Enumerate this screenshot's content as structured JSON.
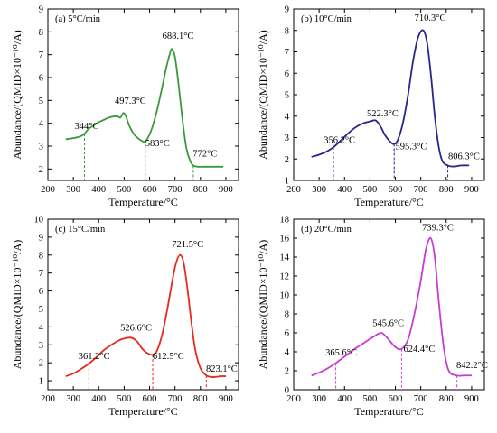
{
  "chart_data": [
    {
      "type": "line",
      "panel_label": "(a) 5°C/min",
      "color": "#3a9a3a",
      "xlabel": "Temperature/°C",
      "ylabel": "Abundance/(QMID×10⁻¹⁰/A)",
      "xlim": [
        200,
        950
      ],
      "ylim": [
        1.5,
        9
      ],
      "xticks": [
        "200",
        "300",
        "400",
        "500",
        "600",
        "700",
        "800",
        "900"
      ],
      "yticks": [
        "2",
        "3",
        "4",
        "5",
        "6",
        "7",
        "8",
        "9"
      ],
      "series": [
        {
          "x": [
            270,
            300,
            320,
            340,
            360,
            380,
            400,
            420,
            440,
            460,
            475,
            485,
            497,
            507,
            520,
            540,
            560,
            575,
            583,
            595,
            610,
            630,
            650,
            665,
            680,
            688,
            700,
            715,
            730,
            745,
            760,
            772,
            790,
            810,
            830,
            850,
            870,
            890
          ],
          "y": [
            3.3,
            3.35,
            3.4,
            3.5,
            3.75,
            3.9,
            4.05,
            4.15,
            4.25,
            4.3,
            4.3,
            4.25,
            4.45,
            4.3,
            3.9,
            3.5,
            3.3,
            3.2,
            3.2,
            3.4,
            3.8,
            4.6,
            5.6,
            6.4,
            7.05,
            7.25,
            6.9,
            5.6,
            4.1,
            2.9,
            2.35,
            2.15,
            2.1,
            2.1,
            2.1,
            2.1,
            2.1,
            2.1
          ]
        }
      ],
      "annotations": [
        {
          "x": 344,
          "y_line": 2.0,
          "text": "344°C",
          "tx": 305,
          "ty": 3.75
        },
        {
          "x": 497.3,
          "y_line": null,
          "text": "497.3°C",
          "tx": 463,
          "ty": 4.85
        },
        {
          "x": 583,
          "y_line": 2.0,
          "text": "583°C",
          "tx": 583,
          "ty": 3.0
        },
        {
          "x": 688.1,
          "y_line": null,
          "text": "688.1°C",
          "tx": 650,
          "ty": 7.7
        },
        {
          "x": 772,
          "y_line": 2.0,
          "text": "772°C",
          "tx": 770,
          "ty": 2.55
        }
      ]
    },
    {
      "type": "line",
      "panel_label": "(b) 10°C/min",
      "color": "#26268c",
      "xlabel": "Temperature/°C",
      "ylabel": "Abundance/(QMID×10⁻¹⁰/A)",
      "xlim": [
        200,
        950
      ],
      "ylim": [
        1,
        9
      ],
      "xticks": [
        "200",
        "300",
        "400",
        "500",
        "600",
        "700",
        "800",
        "900"
      ],
      "yticks": [
        "1",
        "2",
        "3",
        "4",
        "5",
        "6",
        "7",
        "8",
        "9"
      ],
      "series": [
        {
          "x": [
            270,
            300,
            330,
            356,
            380,
            410,
            440,
            470,
            500,
            522,
            540,
            560,
            580,
            595,
            610,
            630,
            650,
            670,
            690,
            710,
            725,
            740,
            755,
            770,
            785,
            806,
            830,
            860,
            890
          ],
          "y": [
            2.1,
            2.2,
            2.35,
            2.55,
            2.8,
            3.15,
            3.45,
            3.65,
            3.75,
            3.8,
            3.55,
            3.1,
            2.8,
            2.7,
            2.9,
            3.7,
            5.0,
            6.6,
            7.7,
            8.0,
            7.4,
            5.9,
            4.0,
            2.6,
            1.9,
            1.7,
            1.65,
            1.7,
            1.7
          ]
        }
      ],
      "annotations": [
        {
          "x": 356.2,
          "y_line": 1.05,
          "text": "356.2°C",
          "tx": 318,
          "ty": 2.75
        },
        {
          "x": 522.3,
          "y_line": null,
          "text": "522.3°C",
          "tx": 488,
          "ty": 4.0
        },
        {
          "x": 595.3,
          "y_line": 1.05,
          "text": "595.3°C",
          "tx": 600,
          "ty": 2.45
        },
        {
          "x": 710.3,
          "y_line": null,
          "text": "710.3°C",
          "tx": 675,
          "ty": 8.45
        },
        {
          "x": 806.3,
          "y_line": 1.05,
          "text": "806.3°C",
          "tx": 808,
          "ty": 2.0
        }
      ]
    },
    {
      "type": "line",
      "panel_label": "(c) 15°C/min",
      "color": "#e8281e",
      "xlabel": "Temperature/°C",
      "ylabel": "Abundance/(QMID×10⁻¹⁰/A)",
      "xlim": [
        200,
        950
      ],
      "ylim": [
        0.5,
        10
      ],
      "xticks": [
        "200",
        "300",
        "400",
        "500",
        "600",
        "700",
        "800",
        "900"
      ],
      "yticks": [
        "1",
        "2",
        "3",
        "4",
        "5",
        "6",
        "7",
        "8",
        "9",
        "10"
      ],
      "series": [
        {
          "x": [
            270,
            300,
            330,
            361,
            390,
            420,
            450,
            480,
            500,
            526,
            550,
            570,
            590,
            612,
            630,
            650,
            670,
            690,
            705,
            721,
            735,
            750,
            765,
            780,
            800,
            823,
            850,
            880,
            900
          ],
          "y": [
            1.25,
            1.4,
            1.65,
            1.95,
            2.3,
            2.7,
            3.0,
            3.25,
            3.35,
            3.4,
            3.2,
            2.8,
            2.55,
            2.45,
            2.7,
            3.6,
            5.0,
            6.6,
            7.6,
            8.0,
            7.5,
            6.0,
            4.2,
            2.7,
            1.7,
            1.3,
            1.2,
            1.25,
            1.25
          ]
        }
      ],
      "annotations": [
        {
          "x": 361.2,
          "y_line": 0.6,
          "text": "361.2°C",
          "tx": 320,
          "ty": 2.2
        },
        {
          "x": 526.6,
          "y_line": null,
          "text": "526.6°C",
          "tx": 485,
          "ty": 3.8
        },
        {
          "x": 612.5,
          "y_line": 0.6,
          "text": "612.5°C",
          "tx": 612,
          "ty": 2.2
        },
        {
          "x": 721.5,
          "y_line": null,
          "text": "721.5°C",
          "tx": 688,
          "ty": 8.45
        },
        {
          "x": 823.1,
          "y_line": 0.6,
          "text": "823.1°C",
          "tx": 822,
          "ty": 1.5
        }
      ]
    },
    {
      "type": "line",
      "panel_label": "(d) 20°C/min",
      "color": "#c83cd4",
      "xlabel": "Temperature/°C",
      "ylabel": "Abundance/(QMID×10⁻¹⁰/A)",
      "xlim": [
        200,
        950
      ],
      "ylim": [
        0,
        18
      ],
      "xticks": [
        "200",
        "300",
        "400",
        "500",
        "600",
        "700",
        "800",
        "900"
      ],
      "yticks": [
        "0",
        "2",
        "4",
        "6",
        "8",
        "10",
        "12",
        "14",
        "16",
        "18"
      ],
      "series": [
        {
          "x": [
            270,
            300,
            330,
            365,
            400,
            440,
            480,
            515,
            545,
            570,
            600,
            624,
            650,
            675,
            700,
            720,
            739,
            755,
            770,
            790,
            810,
            842,
            870,
            900
          ],
          "y": [
            1.5,
            1.8,
            2.2,
            2.8,
            3.5,
            4.3,
            5.0,
            5.6,
            6.0,
            5.4,
            4.5,
            4.3,
            5.3,
            8.0,
            11.5,
            14.8,
            16.0,
            14.0,
            9.5,
            4.5,
            2.0,
            1.5,
            1.5,
            1.5
          ]
        }
      ],
      "annotations": [
        {
          "x": 365.6,
          "y_line": 0.1,
          "text": "365.6°C",
          "tx": 325,
          "ty": 3.6
        },
        {
          "x": 545.6,
          "y_line": null,
          "text": "545.6°C",
          "tx": 510,
          "ty": 6.7
        },
        {
          "x": 624.4,
          "y_line": 0.1,
          "text": "624.4°C",
          "tx": 632,
          "ty": 4.0
        },
        {
          "x": 739.3,
          "y_line": null,
          "text": "739.3°C",
          "tx": 705,
          "ty": 16.8
        },
        {
          "x": 842.2,
          "y_line": 0.1,
          "text": "842.2°C",
          "tx": 840,
          "ty": 2.3
        }
      ]
    }
  ]
}
